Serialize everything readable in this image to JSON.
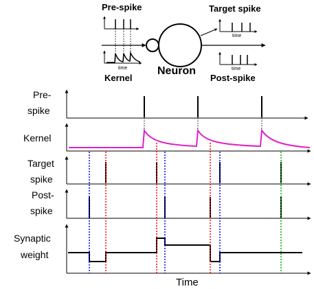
{
  "diagram": {
    "labels": {
      "pre_spike_top": "Pre-spike",
      "target_spike_top": "Target spike",
      "kernel_top": "Kernel",
      "neuron": "Neuron",
      "post_spike_top": "Post-spike",
      "time_small": "time"
    },
    "rows": {
      "pre_spike": [
        "Pre-",
        "spike"
      ],
      "kernel": [
        "Kernel"
      ],
      "target_spike": [
        "Target",
        "spike"
      ],
      "post_spike": [
        "Post-",
        "spike"
      ],
      "synaptic_weight": [
        "Synaptic",
        "weight"
      ]
    },
    "xlabel": "Time",
    "colors": {
      "kernel": "#e020c8",
      "target_marker": "#0000ff",
      "pre_marker": "#ff0000",
      "final_marker": "#00aa00",
      "ink": "#000000"
    }
  }
}
